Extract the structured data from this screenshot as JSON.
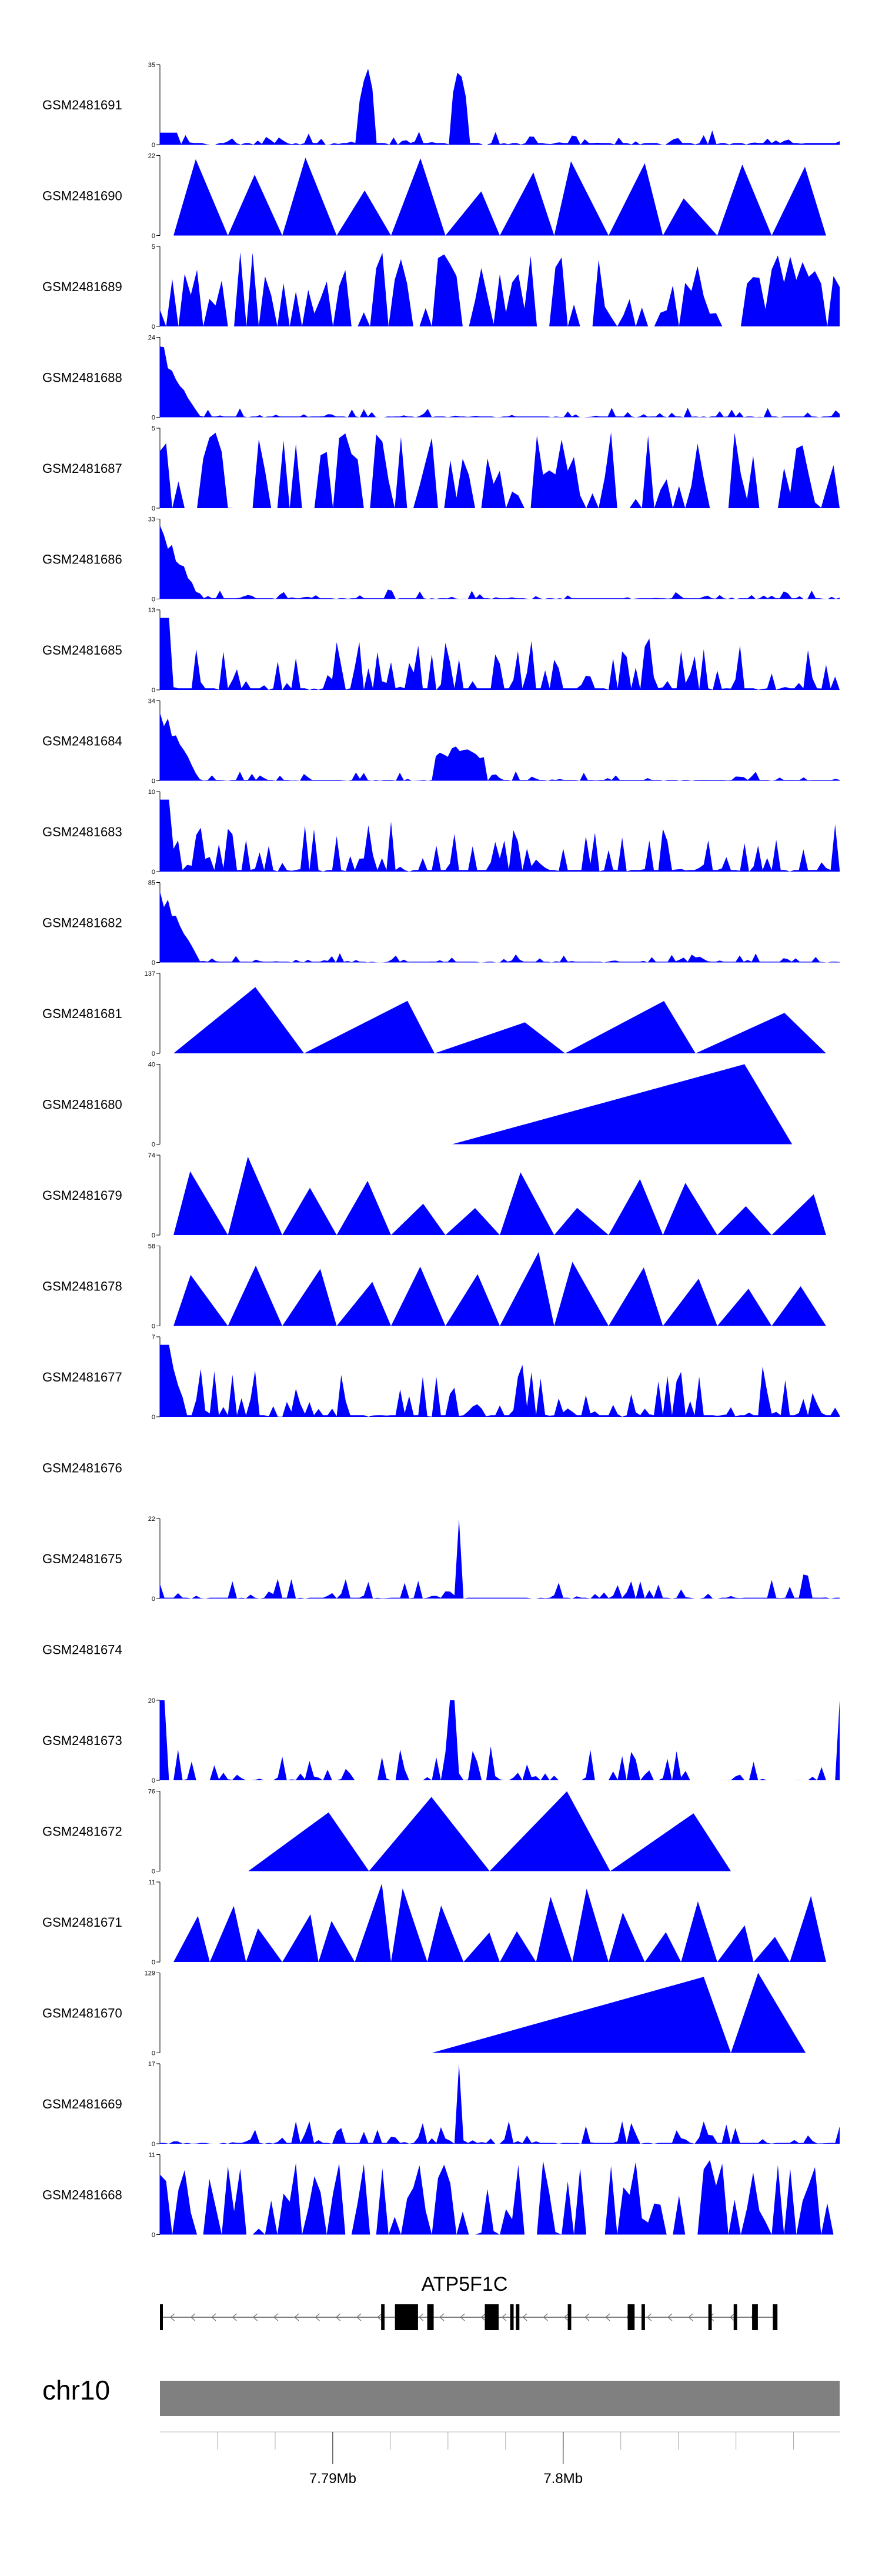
{
  "chart_data": {
    "type": "area",
    "region": {
      "chromosome": "chr10",
      "start": 7782500,
      "end": 7812000
    },
    "fill_color": "#0000ff",
    "gene_color": "#000000",
    "ideogram_color": "#808080",
    "axis_ticks": [
      {
        "position": 7790000,
        "label": "7.79Mb"
      },
      {
        "position": 7800000,
        "label": "7.8Mb"
      }
    ],
    "gene": {
      "name": "ATP5F1C",
      "strand": "-",
      "start": 7782500,
      "end": 7809300,
      "exons": [
        [
          7782500,
          7782620
        ],
        [
          7792100,
          7792250
        ],
        [
          7792700,
          7793700
        ],
        [
          7794100,
          7794380
        ],
        [
          7796600,
          7797200
        ],
        [
          7797700,
          7797850
        ],
        [
          7797950,
          7798100
        ],
        [
          7800200,
          7800350
        ],
        [
          7802800,
          7803100
        ],
        [
          7803400,
          7803550
        ],
        [
          7806300,
          7806450
        ],
        [
          7807400,
          7807550
        ],
        [
          7808200,
          7808450
        ],
        [
          7809100,
          7809300
        ]
      ]
    },
    "tracks": [
      {
        "name": "GSM2481691",
        "ymax": 35,
        "profile": "peaks2",
        "seed": 11
      },
      {
        "name": "GSM2481690",
        "ymax": 22,
        "profile": "tri_sparse",
        "seed": 3
      },
      {
        "name": "GSM2481689",
        "ymax": 5,
        "profile": "spiky",
        "seed": 7
      },
      {
        "name": "GSM2481688",
        "ymax": 24,
        "profile": "left_peak",
        "seed": 13
      },
      {
        "name": "GSM2481687",
        "ymax": 5,
        "profile": "spiky",
        "seed": 19
      },
      {
        "name": "GSM2481686",
        "ymax": 33,
        "profile": "left_peak",
        "seed": 23
      },
      {
        "name": "GSM2481685",
        "ymax": 13,
        "profile": "moderate",
        "seed": 29
      },
      {
        "name": "GSM2481684",
        "ymax": 34,
        "profile": "left_peak_mid",
        "seed": 31
      },
      {
        "name": "GSM2481683",
        "ymax": 10,
        "profile": "moderate",
        "seed": 37
      },
      {
        "name": "GSM2481682",
        "ymax": 85,
        "profile": "left_peak",
        "seed": 41
      },
      {
        "name": "GSM2481681",
        "ymax": 137,
        "profile": "tri_wide",
        "seed": 43
      },
      {
        "name": "GSM2481680",
        "ymax": 40,
        "profile": "ramp",
        "seed": 47
      },
      {
        "name": "GSM2481679",
        "ymax": 74,
        "profile": "tri_sparse",
        "seed": 53
      },
      {
        "name": "GSM2481678",
        "ymax": 58,
        "profile": "tri_sparse",
        "seed": 59
      },
      {
        "name": "GSM2481677",
        "ymax": 7,
        "profile": "moderate",
        "seed": 61
      },
      {
        "name": "GSM2481676",
        "ymax": null,
        "profile": "empty",
        "seed": 0
      },
      {
        "name": "GSM2481675",
        "ymax": 22,
        "profile": "low_peak",
        "seed": 67
      },
      {
        "name": "GSM2481674",
        "ymax": null,
        "profile": "empty",
        "seed": 0
      },
      {
        "name": "GSM2481673",
        "ymax": 20,
        "profile": "moderate_low",
        "seed": 71
      },
      {
        "name": "GSM2481672",
        "ymax": 76,
        "profile": "tri_few",
        "seed": 73
      },
      {
        "name": "GSM2481671",
        "ymax": 11,
        "profile": "tri_sparse_small",
        "seed": 79
      },
      {
        "name": "GSM2481670",
        "ymax": 129,
        "profile": "ramp2",
        "seed": 83
      },
      {
        "name": "GSM2481669",
        "ymax": 17,
        "profile": "low_peak",
        "seed": 89
      },
      {
        "name": "GSM2481668",
        "ymax": 11,
        "profile": "spiky",
        "seed": 97
      }
    ]
  }
}
